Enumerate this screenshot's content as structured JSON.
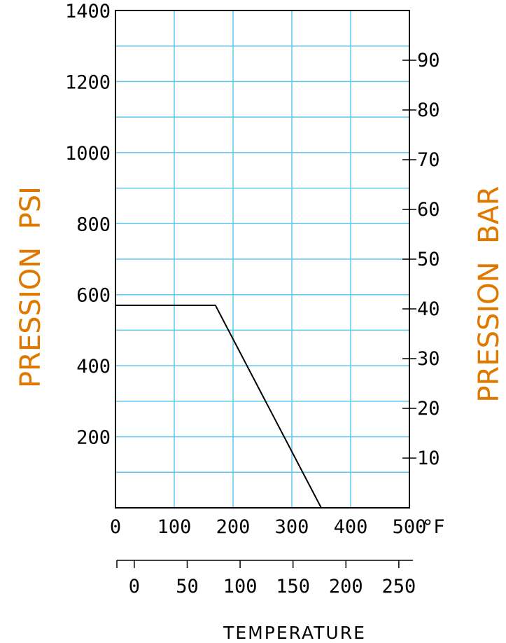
{
  "chart_data": {
    "type": "line",
    "left_axis": {
      "label": "PRESSION  PSI",
      "range": [
        0,
        1400
      ],
      "ticks": [
        200,
        400,
        600,
        800,
        1000,
        1200,
        1400
      ],
      "tick_labels": [
        "200",
        "400",
        "600",
        "800",
        "1000",
        "1200",
        "1400"
      ]
    },
    "right_axis": {
      "label": "PRESSION  BAR",
      "ticks": [
        10,
        20,
        30,
        40,
        50,
        60,
        70,
        80,
        90
      ],
      "tick_labels": [
        "10",
        "20",
        "30",
        "40",
        "50",
        "60",
        "70",
        "80",
        "90"
      ]
    },
    "x_axis_f": {
      "range": [
        0,
        500
      ],
      "ticks": [
        0,
        100,
        200,
        300,
        400,
        500
      ],
      "tick_labels": [
        "0",
        "100",
        "200",
        "300",
        "400",
        "500"
      ],
      "unit": "°F"
    },
    "x_axis_c": {
      "ticks": [
        0,
        50,
        100,
        150,
        200,
        250
      ],
      "tick_labels": [
        "0",
        "50",
        "100",
        "150",
        "200",
        "250"
      ]
    },
    "xlabel": "TEMPERATURE",
    "grid": true,
    "x_gridlines": [
      100,
      200,
      300,
      400
    ],
    "y_gridlines": [
      100,
      200,
      300,
      400,
      500,
      600,
      700,
      800,
      900,
      1000,
      1100,
      1200,
      1300
    ],
    "series": [
      {
        "x": [
          0,
          170,
          350
        ],
        "y": [
          570,
          570,
          0
        ]
      }
    ],
    "colors": {
      "grid": "#5bc8f0",
      "axis": "#000000",
      "line": "#000000",
      "axis_title": "#e07800"
    }
  }
}
